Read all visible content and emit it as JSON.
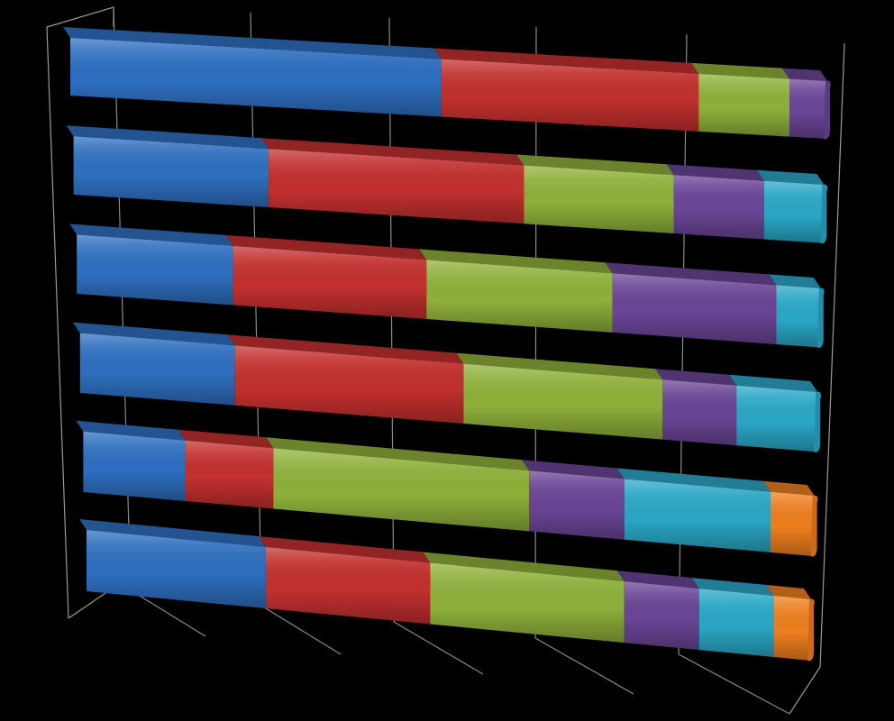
{
  "chart_data": {
    "type": "bar",
    "orientation": "horizontal",
    "stacked": "100%",
    "style": "3d",
    "background": "#000000",
    "title": "",
    "xlabel": "",
    "ylabel": "",
    "xlim": [
      0,
      100
    ],
    "gridlines": true,
    "legend": "none",
    "categories": [
      "",
      "",
      "",
      "",
      "",
      ""
    ],
    "series": [
      {
        "color": "#2E6FC0",
        "values": [
          49,
          26,
          21,
          21,
          14,
          24
        ]
      },
      {
        "color": "#C2302E",
        "values": [
          34,
          34,
          26,
          31,
          12,
          22
        ]
      },
      {
        "color": "#8FB03A",
        "values": [
          12,
          20,
          25,
          27,
          35,
          26
        ]
      },
      {
        "color": "#6A4596",
        "values": [
          5,
          12,
          22,
          10,
          13,
          10
        ]
      },
      {
        "color": "#2AA7C6",
        "values": [
          0,
          8,
          6,
          11,
          20,
          10
        ]
      },
      {
        "color": "#EE7E1E",
        "values": [
          0,
          0,
          0,
          0,
          6,
          5
        ]
      }
    ]
  }
}
